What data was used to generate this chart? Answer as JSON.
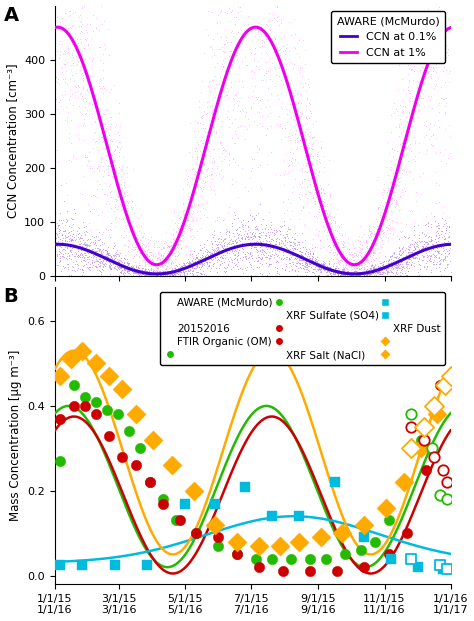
{
  "panel_A": {
    "ylabel": "CCN Concentration [cm⁻³]",
    "yticks": [
      0,
      100,
      200,
      300,
      400
    ],
    "ylim": [
      0,
      500
    ],
    "legend_title": "AWARE (McMurdo)",
    "ccn01_label": "CCN at 0.1%",
    "ccn1_label": "CCN at 1%",
    "scatter_01_color": "#bb88ee",
    "scatter_1_color": "#ffaaff",
    "fit_01_color": "#4400cc",
    "fit_1_color": "#ee00ee"
  },
  "panel_B": {
    "ylabel": "Mass Concentration [μg m⁻³]",
    "yticks": [
      0.0,
      0.2,
      0.4,
      0.6
    ],
    "ylim": [
      -0.02,
      0.68
    ],
    "legend_title": "AWARE (McMurdo)",
    "legend_year": "20152016"
  },
  "colors": {
    "green": "#22bb00",
    "red": "#cc0000",
    "cyan": "#00bbdd",
    "orange": "#ffaa00"
  },
  "x_tick_labels_top": [
    "1/1/15",
    "3/1/15",
    "5/1/15",
    "7/1/15",
    "9/1/15",
    "11/1/15",
    "1/1/16"
  ],
  "x_tick_labels_bot": [
    "1/1/16",
    "3/1/16",
    "5/1/16",
    "7/1/16",
    "9/1/16",
    "11/1/16",
    "1/1/17"
  ],
  "x_tick_positions": [
    0,
    59,
    120,
    181,
    243,
    304,
    365
  ]
}
